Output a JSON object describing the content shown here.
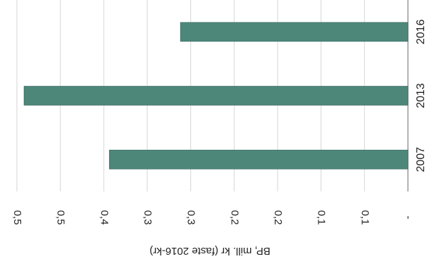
{
  "chart_data": {
    "type": "bar",
    "orientation": "horizontal",
    "rotation": "rotated 90° clockwise (value axis at bottom, categories at right, printed upside-down)",
    "categories": [
      "2007",
      "2013",
      "2016"
    ],
    "values": [
      0.42,
      0.54,
      0.32
    ],
    "value_tick_labels": [
      "-",
      "0,1",
      "0,1",
      "0,2",
      "0,2",
      "0,3",
      "0,3",
      "0,4",
      "0,5",
      "0,5"
    ],
    "xlabel": "",
    "ylabel": "BP, mill. kr (faste 2016-kr)",
    "ylim": [
      0,
      0.55
    ],
    "grid": true,
    "legend": "none",
    "bar_color": "#4d877a",
    "grid_color": "#d6d6d6"
  }
}
